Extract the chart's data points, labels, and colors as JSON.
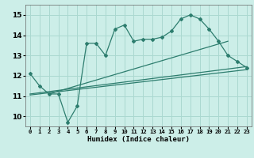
{
  "xlabel": "Humidex (Indice chaleur)",
  "bg_color": "#cceee8",
  "grid_color": "#aad8d0",
  "line_color": "#2d7d6e",
  "xlim": [
    -0.5,
    23.5
  ],
  "ylim": [
    9.5,
    15.5
  ],
  "xticks": [
    0,
    1,
    2,
    3,
    4,
    5,
    6,
    7,
    8,
    9,
    10,
    11,
    12,
    13,
    14,
    15,
    16,
    17,
    18,
    19,
    20,
    21,
    22,
    23
  ],
  "yticks": [
    10,
    11,
    12,
    13,
    14,
    15
  ],
  "main_x": [
    0,
    1,
    2,
    3,
    4,
    5,
    6,
    7,
    8,
    9,
    10,
    11,
    12,
    13,
    14,
    15,
    16,
    17,
    18,
    19,
    20,
    21,
    22,
    23
  ],
  "main_y": [
    12.1,
    11.5,
    11.1,
    11.1,
    9.7,
    10.5,
    13.6,
    13.6,
    13.0,
    14.3,
    14.5,
    13.7,
    13.8,
    13.8,
    13.9,
    14.2,
    14.8,
    15.0,
    14.8,
    14.3,
    13.7,
    13.0,
    12.7,
    12.4
  ],
  "line1_x": [
    0,
    23
  ],
  "line1_y": [
    11.05,
    12.3
  ],
  "line2_x": [
    2,
    21
  ],
  "line2_y": [
    11.1,
    13.7
  ],
  "line3_x": [
    0,
    23
  ],
  "line3_y": [
    11.1,
    12.45
  ]
}
